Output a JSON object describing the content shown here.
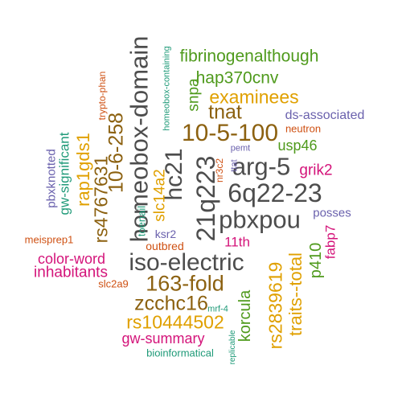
{
  "palette": {
    "gray": "#4d4d4d",
    "brown": "#8c6110",
    "orange": "#e0a000",
    "green": "#4f9a1c",
    "teal": "#1f9a78",
    "purple": "#6a61ad",
    "pink": "#d4147a",
    "red": "#cf5113"
  },
  "words": [
    "fibrinogenalthough",
    "hap370cnv",
    "examinees",
    "tnat",
    "10-5-100",
    "arg-5",
    "6q22-23",
    "pbxpou",
    "iso-electric",
    "163-fold",
    "zcchc16",
    "rs10444502",
    "gw-summary",
    "bioinformatical",
    "homeobox-domain",
    "hc21",
    "21q223",
    "10-6-258",
    "rs4767631",
    "rap1gds1",
    "snpa",
    "slc14a2",
    "ds-associated",
    "neutron",
    "usp46",
    "grik2",
    "posses",
    "fabp7",
    "p410",
    "traits--total",
    "rs2839619",
    "korcula",
    "11th",
    "ksr2",
    "outbred",
    "color-word",
    "inhabitants",
    "slc2a9",
    "meisprep1",
    "toenail",
    "gw-significant",
    "pbxknotted",
    "trypto-phan",
    "homeobox-containing",
    "pemt",
    "nr3c2",
    "ttat",
    "mrf-4",
    "replicable"
  ]
}
